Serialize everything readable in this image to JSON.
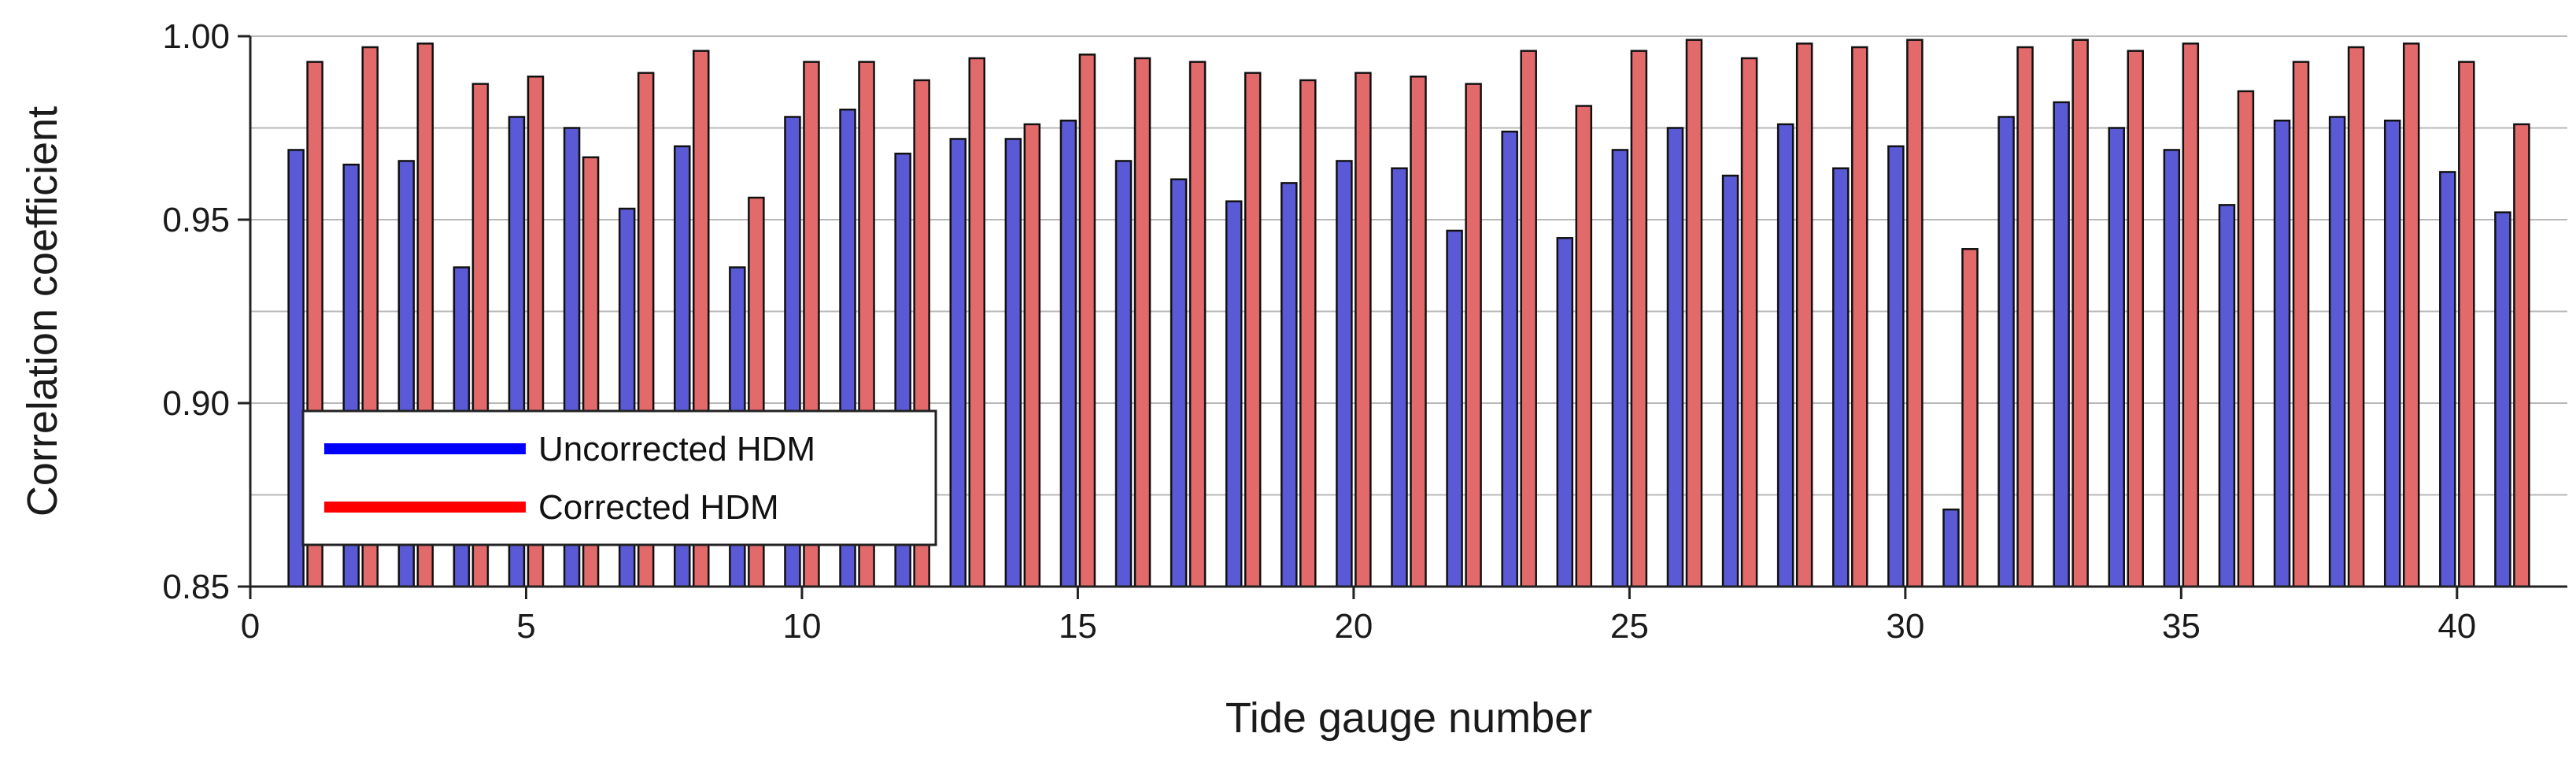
{
  "chart_data": {
    "type": "bar",
    "title": "",
    "xlabel": "Tide gauge number",
    "ylabel": "Correlation coefficient",
    "ylim": [
      0.85,
      1.0
    ],
    "xlim": [
      0,
      42
    ],
    "grid": true,
    "y_ticks": [
      0.85,
      0.9,
      0.95,
      1.0
    ],
    "y_tick_labels": [
      "0.85",
      "0.90",
      "0.95",
      "1.00"
    ],
    "x_ticks": [
      0,
      5,
      10,
      15,
      20,
      25,
      30,
      35,
      40
    ],
    "x_tick_labels": [
      "0",
      "5",
      "10",
      "15",
      "20",
      "25",
      "30",
      "35",
      "40"
    ],
    "legend_position": "lower-left",
    "categories": [
      1,
      2,
      3,
      4,
      5,
      6,
      7,
      8,
      9,
      10,
      11,
      12,
      13,
      14,
      15,
      16,
      17,
      18,
      19,
      20,
      21,
      22,
      23,
      24,
      25,
      26,
      27,
      28,
      29,
      30,
      31,
      32,
      33,
      34,
      35,
      36,
      37,
      38,
      39,
      40,
      41
    ],
    "series": [
      {
        "name": "Uncorrected HDM",
        "color": "#5a5ad6",
        "legend_color": "#0000ff",
        "values": [
          0.969,
          0.965,
          0.966,
          0.937,
          0.978,
          0.975,
          0.953,
          0.97,
          0.937,
          0.978,
          0.98,
          0.968,
          0.972,
          0.972,
          0.977,
          0.966,
          0.961,
          0.955,
          0.96,
          0.966,
          0.964,
          0.947,
          0.974,
          0.945,
          0.969,
          0.975,
          0.962,
          0.976,
          0.964,
          0.97,
          0.871,
          0.978,
          0.982,
          0.975,
          0.969,
          0.954,
          0.977,
          0.978,
          0.977,
          0.963,
          0.952
        ]
      },
      {
        "name": "Corrected HDM",
        "color": "#e26a6a",
        "legend_color": "#ff0000",
        "values": [
          0.993,
          0.997,
          0.998,
          0.987,
          0.989,
          0.967,
          0.99,
          0.996,
          0.956,
          0.993,
          0.993,
          0.988,
          0.994,
          0.976,
          0.995,
          0.994,
          0.993,
          0.99,
          0.988,
          0.99,
          0.989,
          0.987,
          0.996,
          0.981,
          0.996,
          0.999,
          0.994,
          0.998,
          0.997,
          0.999,
          0.942,
          0.997,
          0.999,
          0.996,
          0.998,
          0.985,
          0.993,
          0.997,
          0.998,
          0.993,
          0.976
        ]
      }
    ]
  }
}
